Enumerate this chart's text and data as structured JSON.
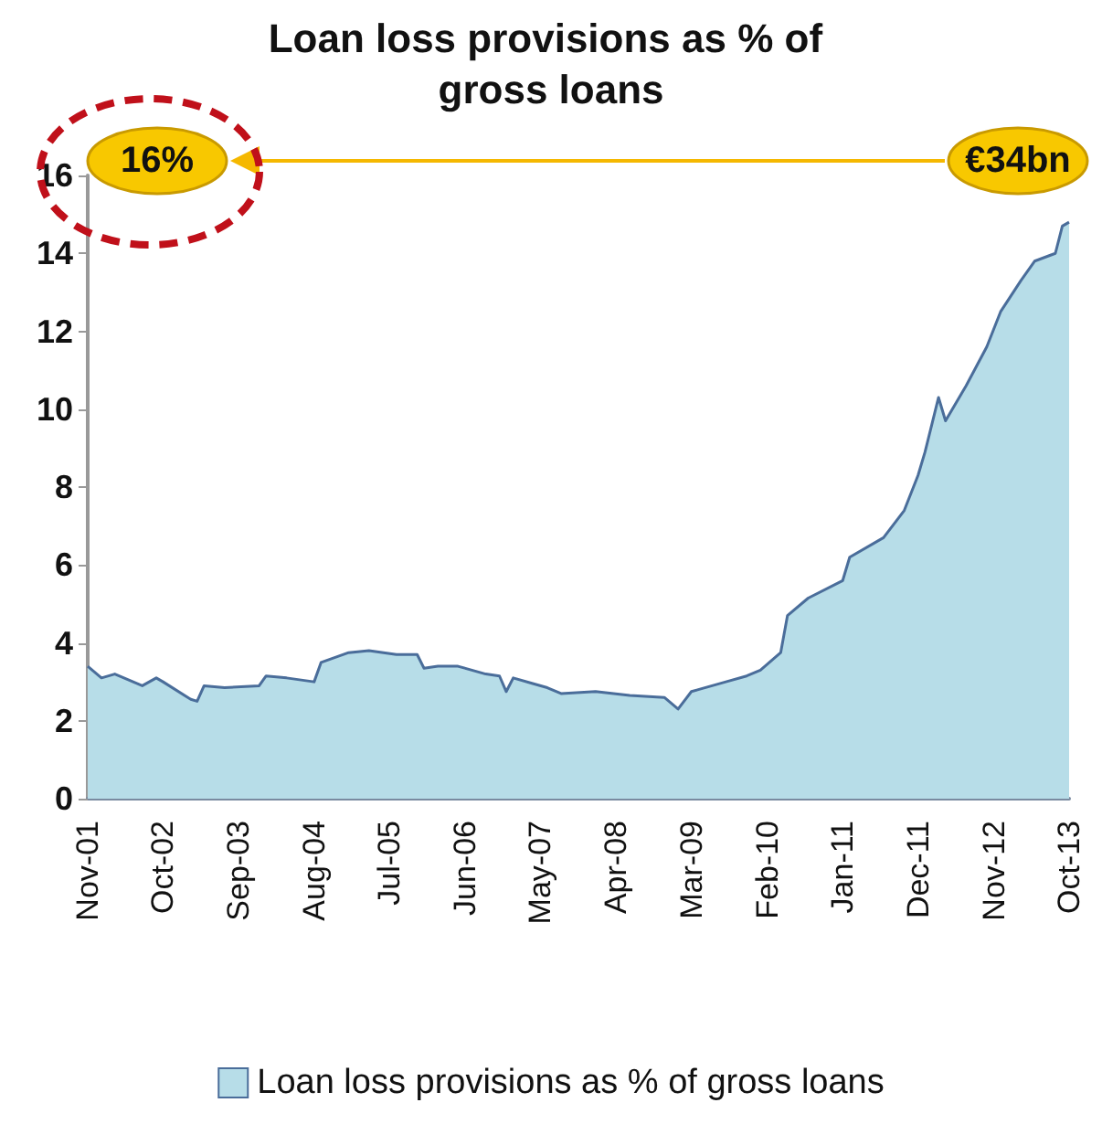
{
  "chart_data": {
    "type": "area",
    "title": "Loan loss provisions as % of gross loans",
    "x": [
      "2001-11",
      "2002-01",
      "2002-03",
      "2002-07",
      "2002-09",
      "2002-10",
      "2003-02",
      "2003-03",
      "2003-04",
      "2003-07",
      "2003-12",
      "2004-01",
      "2004-04",
      "2004-08",
      "2004-09",
      "2005-01",
      "2005-04",
      "2005-08",
      "2005-11",
      "2005-12",
      "2006-02",
      "2006-05",
      "2006-09",
      "2006-11",
      "2006-12",
      "2007-01",
      "2007-04",
      "2007-06",
      "2007-08",
      "2008-01",
      "2008-06",
      "2008-11",
      "2009-01",
      "2009-03",
      "2009-08",
      "2009-11",
      "2010-01",
      "2010-04",
      "2010-05",
      "2010-08",
      "2011-01",
      "2011-02",
      "2011-07",
      "2011-10",
      "2011-12",
      "2012-01",
      "2012-03",
      "2012-04",
      "2012-07",
      "2012-10",
      "2012-12",
      "2013-03",
      "2013-05",
      "2013-08",
      "2013-09",
      "2013-10"
    ],
    "series": [
      {
        "name": "Loan loss provisions as % of gross loans",
        "color": "#b7dde8",
        "values": [
          3.4,
          3.1,
          3.2,
          2.9,
          3.1,
          3.0,
          2.55,
          2.5,
          2.9,
          2.85,
          2.9,
          3.15,
          3.1,
          3.0,
          3.5,
          3.75,
          3.8,
          3.7,
          3.7,
          3.35,
          3.4,
          3.4,
          3.2,
          3.15,
          2.75,
          3.1,
          2.95,
          2.85,
          2.7,
          2.75,
          2.65,
          2.6,
          2.3,
          2.75,
          3.0,
          3.15,
          3.3,
          3.75,
          4.7,
          5.15,
          5.6,
          6.2,
          6.7,
          7.4,
          8.3,
          8.9,
          10.3,
          9.7,
          10.6,
          11.6,
          12.5,
          13.3,
          13.8,
          14.0,
          14.7,
          14.8
        ]
      }
    ],
    "xlim": [
      "2001-11",
      "2013-10"
    ],
    "xticks": [
      {
        "value": "2001-11",
        "label": "Nov-01"
      },
      {
        "value": "2002-10",
        "label": "Oct-02"
      },
      {
        "value": "2003-09",
        "label": "Sep-03"
      },
      {
        "value": "2004-08",
        "label": "Aug-04"
      },
      {
        "value": "2005-07",
        "label": "Jul-05"
      },
      {
        "value": "2006-06",
        "label": "Jun-06"
      },
      {
        "value": "2007-05",
        "label": "May-07"
      },
      {
        "value": "2008-04",
        "label": "Apr-08"
      },
      {
        "value": "2009-03",
        "label": "Mar-09"
      },
      {
        "value": "2010-02",
        "label": "Feb-10"
      },
      {
        "value": "2011-01",
        "label": "Jan-11"
      },
      {
        "value": "2011-12",
        "label": "Dec-11"
      },
      {
        "value": "2012-11",
        "label": "Nov-12"
      },
      {
        "value": "2013-10",
        "label": "Oct-13"
      }
    ],
    "ylim": [
      0,
      16
    ],
    "yticks": [
      0,
      2,
      4,
      6,
      8,
      10,
      12,
      14,
      16
    ],
    "annotations": [
      "16%",
      "€34bn"
    ],
    "grid": false,
    "legend": "bottom",
    "marker": "none",
    "line_style": "solid"
  }
}
